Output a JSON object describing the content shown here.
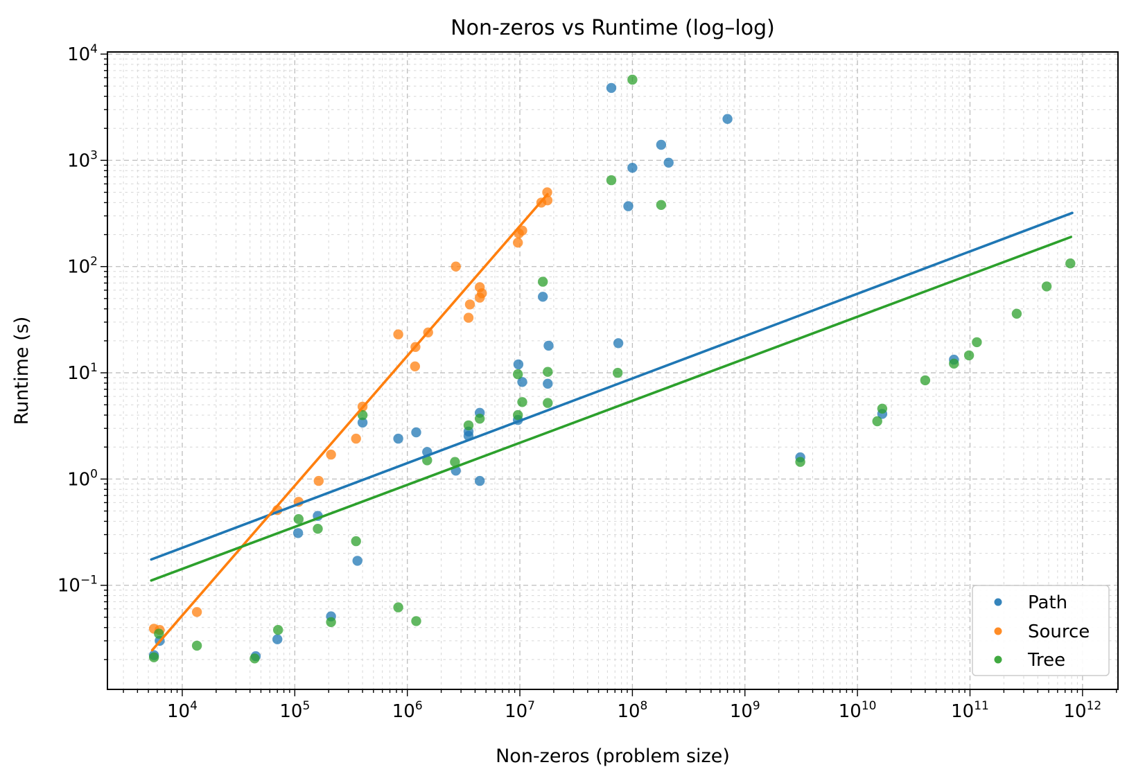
{
  "chart_data": {
    "type": "scatter",
    "title": "Non-zeros vs Runtime (log–log)",
    "xlabel": "Non-zeros (problem size)",
    "ylabel": "Runtime (s)",
    "x_scale": "log",
    "y_scale": "log",
    "xlim_exp": [
      3.335,
      12.315
    ],
    "ylim_exp": [
      -1.98,
      4.02
    ],
    "x_tick_exponents": [
      4,
      5,
      6,
      7,
      8,
      9,
      10,
      11,
      12
    ],
    "y_tick_exponents": [
      -1,
      0,
      1,
      2,
      3,
      4
    ],
    "grid": {
      "major": true,
      "minor": true,
      "style": "dashed"
    },
    "marker_alpha": 0.75,
    "colors": {
      "path": "#1f77b4",
      "source": "#ff7f0e",
      "tree": "#2ca02c"
    },
    "legend": {
      "position": "lower right",
      "entries": [
        "Path",
        "Source",
        "Tree"
      ]
    },
    "series": [
      {
        "name": "Path",
        "color": "#1f77b4",
        "points": [
          [
            5600,
            0.022
          ],
          [
            6300,
            0.03
          ],
          [
            45000,
            0.0215
          ],
          [
            70000,
            0.031
          ],
          [
            107000,
            0.31
          ],
          [
            160000,
            0.45
          ],
          [
            210000,
            0.051
          ],
          [
            360000,
            0.17
          ],
          [
            400000,
            3.4
          ],
          [
            830000,
            2.4
          ],
          [
            1200000,
            2.75
          ],
          [
            1500000,
            1.8
          ],
          [
            2700000,
            1.2
          ],
          [
            3500000,
            2.8
          ],
          [
            3500000,
            2.55
          ],
          [
            4400000,
            4.2
          ],
          [
            4400000,
            0.96
          ],
          [
            9700000,
            12
          ],
          [
            9600000,
            3.6
          ],
          [
            10500000,
            8.2
          ],
          [
            16000000,
            52
          ],
          [
            18000000,
            18
          ],
          [
            17700000,
            7.9
          ],
          [
            65000000,
            4800
          ],
          [
            75000000,
            19
          ],
          [
            92000000,
            370
          ],
          [
            100000000,
            850
          ],
          [
            180000000,
            1400
          ],
          [
            210000000,
            950
          ],
          [
            700000000,
            2450
          ],
          [
            3100000000,
            1.6
          ],
          [
            16600000000,
            4.1
          ],
          [
            72000000000,
            13.3
          ]
        ],
        "trendline": {
          "x": [
            5300,
            810000000000
          ],
          "y": [
            0.175,
            320
          ]
        }
      },
      {
        "name": "Source",
        "color": "#ff7f0e",
        "points": [
          [
            5600,
            0.039
          ],
          [
            6300,
            0.038
          ],
          [
            13500,
            0.056
          ],
          [
            70000,
            0.51
          ],
          [
            108000,
            0.61
          ],
          [
            163000,
            0.96
          ],
          [
            210000,
            1.7
          ],
          [
            350000,
            2.4
          ],
          [
            400000,
            4.8
          ],
          [
            830000,
            23
          ],
          [
            1180000,
            17.5
          ],
          [
            1170000,
            11.5
          ],
          [
            1530000,
            24
          ],
          [
            2700000,
            100
          ],
          [
            3500000,
            33
          ],
          [
            3600000,
            44
          ],
          [
            4400000,
            64
          ],
          [
            4600000,
            56
          ],
          [
            4400000,
            51
          ],
          [
            9600000,
            168
          ],
          [
            9800000,
            205
          ],
          [
            10500000,
            218
          ],
          [
            15500000,
            400
          ],
          [
            17600000,
            420
          ],
          [
            17500000,
            500
          ]
        ],
        "trendline": {
          "x": [
            5400,
            17600000
          ],
          "y": [
            0.0245,
            480
          ]
        }
      },
      {
        "name": "Tree",
        "color": "#2ca02c",
        "points": [
          [
            5600,
            0.021
          ],
          [
            6200,
            0.035
          ],
          [
            13500,
            0.027
          ],
          [
            44000,
            0.0205
          ],
          [
            71000,
            0.038
          ],
          [
            108000,
            0.42
          ],
          [
            160000,
            0.34
          ],
          [
            210000,
            0.045
          ],
          [
            350000,
            0.26
          ],
          [
            400000,
            4.0
          ],
          [
            830000,
            0.062
          ],
          [
            1200000,
            0.046
          ],
          [
            1500000,
            1.5
          ],
          [
            2650000,
            1.45
          ],
          [
            3500000,
            3.2
          ],
          [
            4400000,
            3.7
          ],
          [
            9600000,
            4.0
          ],
          [
            9600000,
            9.7
          ],
          [
            10500000,
            5.3
          ],
          [
            17700000,
            10.2
          ],
          [
            17700000,
            5.2
          ],
          [
            16000000,
            72
          ],
          [
            65000000,
            650
          ],
          [
            74000000,
            10
          ],
          [
            100000000,
            5740
          ],
          [
            180000000,
            380
          ],
          [
            3100000000,
            1.45
          ],
          [
            15000000000,
            3.5
          ],
          [
            16600000000,
            4.6
          ],
          [
            40000000000,
            8.5
          ],
          [
            72000000000,
            12.2
          ],
          [
            98000000000,
            14.6
          ],
          [
            115000000000,
            19.4
          ],
          [
            260000000000,
            36
          ],
          [
            480000000000,
            65
          ],
          [
            780000000000,
            107
          ]
        ],
        "trendline": {
          "x": [
            5300,
            790000000000
          ],
          "y": [
            0.111,
            190
          ]
        }
      }
    ]
  }
}
